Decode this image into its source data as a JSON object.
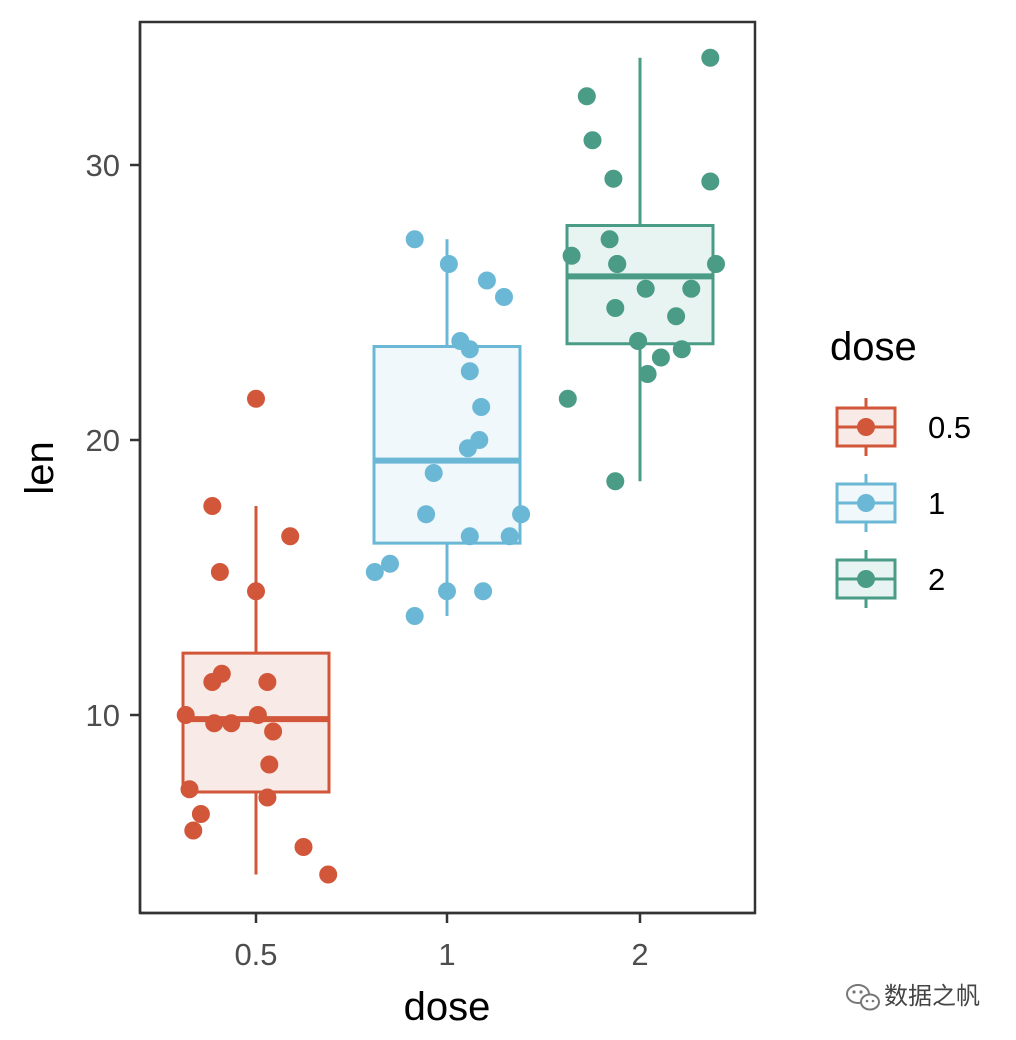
{
  "chart_data": {
    "type": "boxplot",
    "xlabel": "dose",
    "ylabel": "len",
    "categories": [
      "0.5",
      "1",
      "2"
    ],
    "yticks": [
      10,
      20,
      30
    ],
    "ylim": [
      2.8,
      35.2
    ],
    "grid": false,
    "legend": {
      "title": "dose",
      "placement": "right",
      "entries": [
        "0.5",
        "1",
        "2"
      ]
    },
    "colors": {
      "0.5": "#d2573a",
      "1": "#6bb8d6",
      "2": "#4a9c86"
    },
    "fill_colors": {
      "0.5": "#f8ebe7",
      "1": "#f0f8fb",
      "2": "#e8f4f1"
    },
    "boxes": [
      {
        "category": "0.5",
        "min": 4.2,
        "q1": 7.2,
        "median": 9.85,
        "q3": 12.25,
        "max": 17.6
      },
      {
        "category": "1",
        "min": 13.6,
        "q1": 16.25,
        "median": 19.25,
        "q3": 23.4,
        "max": 27.3
      },
      {
        "category": "2",
        "min": 18.5,
        "q1": 23.5,
        "median": 25.95,
        "q3": 27.8,
        "max": 33.9
      }
    ],
    "points": [
      {
        "category": "0.5",
        "jitter": 0.0,
        "len": 21.5
      },
      {
        "category": "0.5",
        "jitter": -0.23,
        "len": 17.6
      },
      {
        "category": "0.5",
        "jitter": 0.18,
        "len": 16.5
      },
      {
        "category": "0.5",
        "jitter": -0.19,
        "len": 15.2
      },
      {
        "category": "0.5",
        "jitter": 0.0,
        "len": 14.5
      },
      {
        "category": "0.5",
        "jitter": -0.18,
        "len": 11.5
      },
      {
        "category": "0.5",
        "jitter": -0.23,
        "len": 11.2
      },
      {
        "category": "0.5",
        "jitter": 0.06,
        "len": 11.2
      },
      {
        "category": "0.5",
        "jitter": -0.37,
        "len": 10.0
      },
      {
        "category": "0.5",
        "jitter": 0.01,
        "len": 10.0
      },
      {
        "category": "0.5",
        "jitter": -0.22,
        "len": 9.7
      },
      {
        "category": "0.5",
        "jitter": -0.13,
        "len": 9.7
      },
      {
        "category": "0.5",
        "jitter": 0.09,
        "len": 9.4
      },
      {
        "category": "0.5",
        "jitter": 0.07,
        "len": 8.2
      },
      {
        "category": "0.5",
        "jitter": -0.35,
        "len": 7.3
      },
      {
        "category": "0.5",
        "jitter": 0.06,
        "len": 7.0
      },
      {
        "category": "0.5",
        "jitter": -0.29,
        "len": 6.4
      },
      {
        "category": "0.5",
        "jitter": -0.33,
        "len": 5.8
      },
      {
        "category": "0.5",
        "jitter": 0.25,
        "len": 5.2
      },
      {
        "category": "0.5",
        "jitter": 0.38,
        "len": 4.2
      },
      {
        "category": "1",
        "jitter": -0.17,
        "len": 27.3
      },
      {
        "category": "1",
        "jitter": 0.01,
        "len": 26.4
      },
      {
        "category": "1",
        "jitter": 0.21,
        "len": 25.8
      },
      {
        "category": "1",
        "jitter": 0.3,
        "len": 25.2
      },
      {
        "category": "1",
        "jitter": 0.07,
        "len": 23.6
      },
      {
        "category": "1",
        "jitter": 0.12,
        "len": 23.3
      },
      {
        "category": "1",
        "jitter": 0.12,
        "len": 22.5
      },
      {
        "category": "1",
        "jitter": 0.18,
        "len": 21.2
      },
      {
        "category": "1",
        "jitter": 0.17,
        "len": 20.0
      },
      {
        "category": "1",
        "jitter": 0.11,
        "len": 19.7
      },
      {
        "category": "1",
        "jitter": -0.07,
        "len": 18.8
      },
      {
        "category": "1",
        "jitter": 0.39,
        "len": 17.3
      },
      {
        "category": "1",
        "jitter": -0.11,
        "len": 17.3
      },
      {
        "category": "1",
        "jitter": 0.12,
        "len": 16.5
      },
      {
        "category": "1",
        "jitter": 0.33,
        "len": 16.5
      },
      {
        "category": "1",
        "jitter": -0.3,
        "len": 15.5
      },
      {
        "category": "1",
        "jitter": -0.38,
        "len": 15.2
      },
      {
        "category": "1",
        "jitter": 0.0,
        "len": 14.5
      },
      {
        "category": "1",
        "jitter": 0.19,
        "len": 14.5
      },
      {
        "category": "1",
        "jitter": -0.17,
        "len": 13.6
      },
      {
        "category": "2",
        "jitter": 0.37,
        "len": 33.9
      },
      {
        "category": "2",
        "jitter": -0.28,
        "len": 32.5
      },
      {
        "category": "2",
        "jitter": -0.25,
        "len": 30.9
      },
      {
        "category": "2",
        "jitter": -0.14,
        "len": 29.5
      },
      {
        "category": "2",
        "jitter": 0.37,
        "len": 29.4
      },
      {
        "category": "2",
        "jitter": -0.16,
        "len": 27.3
      },
      {
        "category": "2",
        "jitter": -0.36,
        "len": 26.7
      },
      {
        "category": "2",
        "jitter": -0.12,
        "len": 26.4
      },
      {
        "category": "2",
        "jitter": 0.4,
        "len": 26.4
      },
      {
        "category": "2",
        "jitter": -0.12,
        "len": 26.4
      },
      {
        "category": "2",
        "jitter": 0.03,
        "len": 25.5
      },
      {
        "category": "2",
        "jitter": 0.27,
        "len": 25.5
      },
      {
        "category": "2",
        "jitter": -0.13,
        "len": 24.8
      },
      {
        "category": "2",
        "jitter": 0.19,
        "len": 24.5
      },
      {
        "category": "2",
        "jitter": -0.01,
        "len": 23.6
      },
      {
        "category": "2",
        "jitter": 0.22,
        "len": 23.3
      },
      {
        "category": "2",
        "jitter": 0.11,
        "len": 23.0
      },
      {
        "category": "2",
        "jitter": 0.04,
        "len": 22.4
      },
      {
        "category": "2",
        "jitter": -0.38,
        "len": 21.5
      },
      {
        "category": "2",
        "jitter": -0.13,
        "len": 18.5
      }
    ]
  },
  "watermark": {
    "text": "数据之帆",
    "icon": "wechat-icon"
  }
}
